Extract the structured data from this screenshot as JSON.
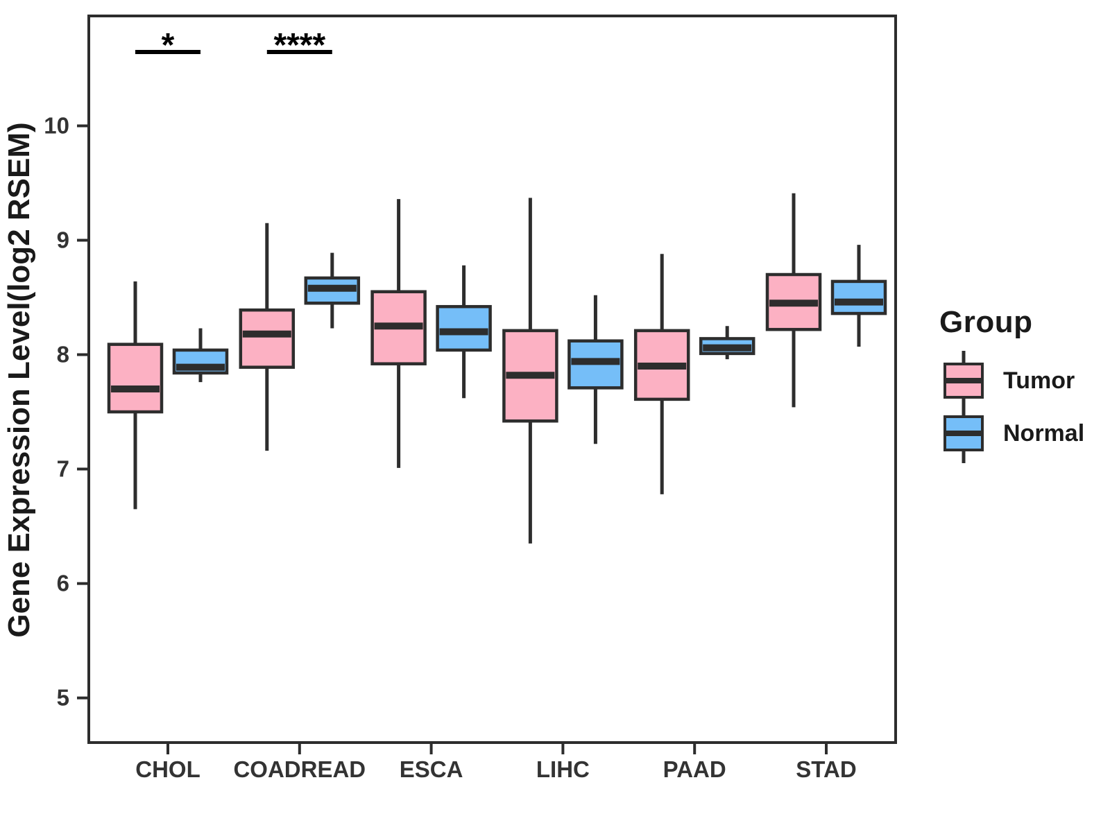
{
  "figure": {
    "background": "#FFFFFF"
  },
  "legend": {
    "title": "Group",
    "items": [
      {
        "label": "Tumor"
      },
      {
        "label": "Normal"
      }
    ]
  },
  "chart_data": {
    "type": "boxplot",
    "title": "",
    "xlabel": "",
    "ylabel": "Gene Expression Level(log2 RSEM)",
    "categories": [
      "CHOL",
      "COADREAD",
      "ESCA",
      "LIHC",
      "PAAD",
      "STAD"
    ],
    "yticks": [
      5,
      6,
      7,
      8,
      9,
      10
    ],
    "ylim": [
      4.61,
      10.96
    ],
    "grid": false,
    "legend_position": "right",
    "colors": {
      "tumor": "#FCB1C3",
      "normal": "#75BEF8",
      "box_border": "#2D2D2D",
      "axis": "#2D2D2D",
      "tick_text": "#333333",
      "significance": "#000000"
    },
    "series": [
      {
        "name": "Tumor",
        "color": "#FCB1C3",
        "boxes": [
          {
            "category": "CHOL",
            "min": 6.65,
            "q1": 7.5,
            "median": 7.7,
            "q3": 8.09,
            "max": 8.64
          },
          {
            "category": "COADREAD",
            "min": 7.16,
            "q1": 7.89,
            "median": 8.18,
            "q3": 8.39,
            "max": 9.15
          },
          {
            "category": "ESCA",
            "min": 7.01,
            "q1": 7.92,
            "median": 8.25,
            "q3": 8.55,
            "max": 9.36
          },
          {
            "category": "LIHC",
            "min": 6.35,
            "q1": 7.42,
            "median": 7.82,
            "q3": 8.21,
            "max": 9.37
          },
          {
            "category": "PAAD",
            "min": 6.78,
            "q1": 7.61,
            "median": 7.9,
            "q3": 8.21,
            "max": 8.88
          },
          {
            "category": "STAD",
            "min": 7.54,
            "q1": 8.22,
            "median": 8.45,
            "q3": 8.7,
            "max": 9.41
          }
        ]
      },
      {
        "name": "Normal",
        "color": "#75BEF8",
        "boxes": [
          {
            "category": "CHOL",
            "min": 7.76,
            "q1": 7.84,
            "median": 7.89,
            "q3": 8.04,
            "max": 8.23
          },
          {
            "category": "COADREAD",
            "min": 8.23,
            "q1": 8.45,
            "median": 8.58,
            "q3": 8.67,
            "max": 8.89
          },
          {
            "category": "ESCA",
            "min": 7.62,
            "q1": 8.04,
            "median": 8.2,
            "q3": 8.42,
            "max": 8.78
          },
          {
            "category": "LIHC",
            "min": 7.22,
            "q1": 7.71,
            "median": 7.94,
            "q3": 8.12,
            "max": 8.52
          },
          {
            "category": "PAAD",
            "min": 7.96,
            "q1": 8.01,
            "median": 8.06,
            "q3": 8.14,
            "max": 8.25
          },
          {
            "category": "STAD",
            "min": 8.07,
            "q1": 8.36,
            "median": 8.46,
            "q3": 8.64,
            "max": 8.96
          }
        ]
      }
    ],
    "significance": [
      {
        "category": "CHOL",
        "label": "*"
      },
      {
        "category": "COADREAD",
        "label": "****"
      }
    ]
  }
}
